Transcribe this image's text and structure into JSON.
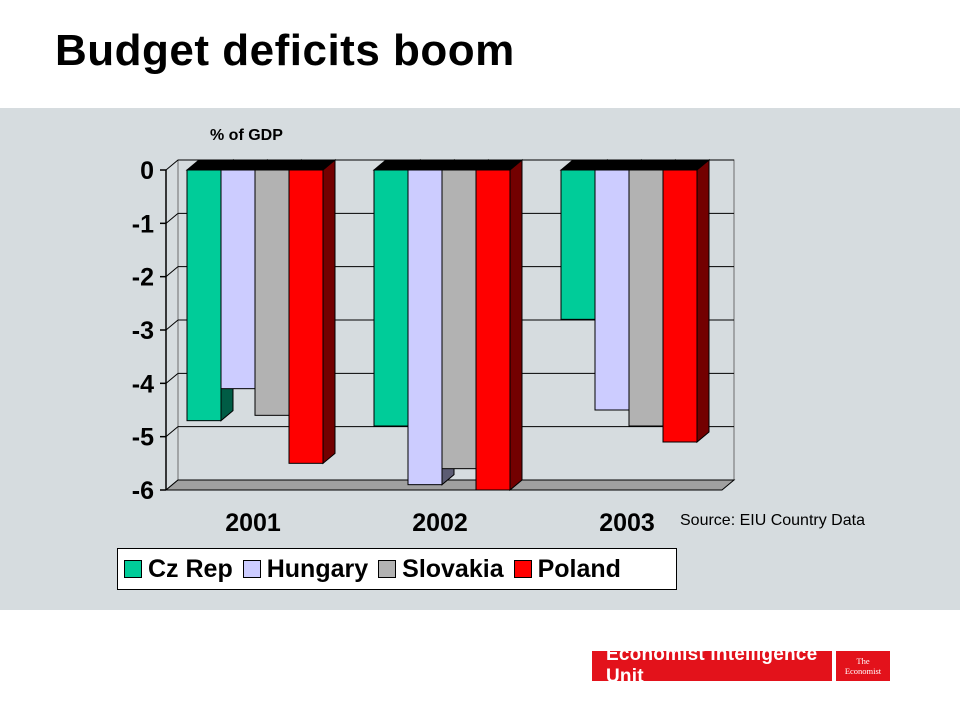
{
  "title": "Budget deficits boom",
  "source": "Source: EIU Country Data",
  "logo": {
    "main": "Economist Intelligence Unit",
    "the": "The",
    "economist": "Economist"
  },
  "colors": {
    "panel": "#d6dcdf",
    "brand_red": "#e3121b"
  },
  "chart_data": {
    "type": "bar",
    "style": "3d-clustered",
    "ylabel": "% of GDP",
    "xlabel": "",
    "categories": [
      "2001",
      "2002",
      "2003"
    ],
    "ylim": [
      -6,
      0
    ],
    "yticks": [
      "0",
      "-1",
      "-2",
      "-3",
      "-4",
      "-5",
      "-6"
    ],
    "gridlines": true,
    "legend_position": "bottom",
    "series": [
      {
        "name": "Cz Rep",
        "color": "#00cc99",
        "values": [
          -4.7,
          -4.8,
          -2.8
        ]
      },
      {
        "name": "Hungary",
        "color": "#ccccff",
        "values": [
          -4.1,
          -5.9,
          -4.5
        ]
      },
      {
        "name": "Slovakia",
        "color": "#b2b2b2",
        "values": [
          -4.6,
          -5.6,
          -4.8
        ]
      },
      {
        "name": "Poland",
        "color": "#ff0000",
        "values": [
          -5.5,
          -6.0,
          -5.1
        ]
      }
    ]
  }
}
